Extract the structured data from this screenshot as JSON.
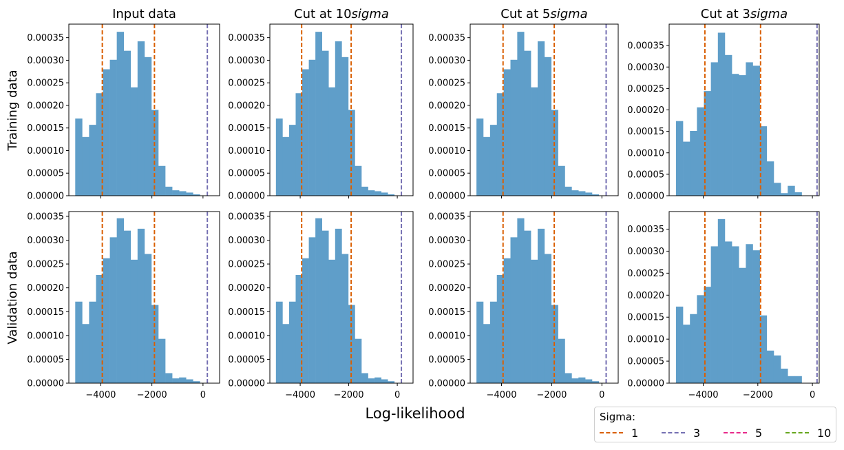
{
  "figure": {
    "xlabel": "Log-likelihood",
    "row_labels": [
      "Training data",
      "Validation data"
    ],
    "column_titles": [
      {
        "text": "Input data",
        "prefix": "Input data",
        "italic": ""
      },
      {
        "text": "Cut at 10sigma",
        "prefix": "Cut at 10",
        "italic": "sigma"
      },
      {
        "text": "Cut at 5sigma",
        "prefix": "Cut at 5",
        "italic": "sigma"
      },
      {
        "text": "Cut at 3sigma",
        "prefix": "Cut at 3",
        "italic": "sigma"
      }
    ],
    "colors": {
      "bars": "#5f9ec9",
      "sigma1": "#d95f02",
      "sigma3": "#7570b3",
      "sigma5": "#e7298a",
      "sigma10": "#66a61e"
    }
  },
  "legend": {
    "title": "Sigma:",
    "items": [
      {
        "label": "1",
        "color": "#d95f02"
      },
      {
        "label": "3",
        "color": "#7570b3"
      },
      {
        "label": "5",
        "color": "#e7298a"
      },
      {
        "label": "10",
        "color": "#66a61e"
      }
    ]
  },
  "chart_data": [
    {
      "type": "bar",
      "title": "Input data",
      "ylabel": "Training data",
      "xlim": [
        -5250,
        650
      ],
      "ylim": [
        0,
        0.00038
      ],
      "xticks": [
        -4000,
        -2000,
        0
      ],
      "xtick_labels": [
        "−4000",
        "−2000",
        "0"
      ],
      "yticks": [
        0,
        5e-05,
        0.0001,
        0.00015,
        0.0002,
        0.00025,
        0.0003,
        0.00035
      ],
      "ytick_labels": [
        "0.00000",
        "0.00005",
        "0.00010",
        "0.00015",
        "0.00020",
        "0.00025",
        "0.00030",
        "0.00035"
      ],
      "bin_start": -5000,
      "bin_width": 271,
      "values": [
        0.000171,
        0.00013,
        0.000157,
        0.000227,
        0.00028,
        0.000301,
        0.000363,
        0.000321,
        0.00024,
        0.000342,
        0.000307,
        0.00019,
        6.6e-05,
        2e-05,
        1.2e-05,
        1e-05,
        7e-06,
        3e-06
      ],
      "vlines": [
        {
          "sigma": "1",
          "x": -3940
        },
        {
          "sigma": "1",
          "x": -1900
        },
        {
          "sigma": "3",
          "x": 170
        }
      ]
    },
    {
      "type": "bar",
      "title": "Cut at 10sigma",
      "ylabel": "",
      "xlim": [
        -5250,
        650
      ],
      "ylim": [
        0,
        0.00038
      ],
      "xticks": [
        -4000,
        -2000,
        0
      ],
      "xtick_labels": [
        "−4000",
        "−2000",
        "0"
      ],
      "yticks": [
        0,
        5e-05,
        0.0001,
        0.00015,
        0.0002,
        0.00025,
        0.0003,
        0.00035
      ],
      "ytick_labels": [
        "0.00000",
        "0.00005",
        "0.00010",
        "0.00015",
        "0.00020",
        "0.00025",
        "0.00030",
        "0.00035"
      ],
      "bin_start": -5000,
      "bin_width": 271,
      "values": [
        0.000171,
        0.00013,
        0.000157,
        0.000227,
        0.00028,
        0.000301,
        0.000363,
        0.000321,
        0.00024,
        0.000342,
        0.000307,
        0.00019,
        6.6e-05,
        2e-05,
        1.2e-05,
        1e-05,
        7e-06,
        3e-06
      ],
      "vlines": [
        {
          "sigma": "1",
          "x": -3940
        },
        {
          "sigma": "1",
          "x": -1900
        },
        {
          "sigma": "3",
          "x": 170
        }
      ]
    },
    {
      "type": "bar",
      "title": "Cut at 5sigma",
      "ylabel": "",
      "xlim": [
        -5250,
        650
      ],
      "ylim": [
        0,
        0.00038
      ],
      "xticks": [
        -4000,
        -2000,
        0
      ],
      "xtick_labels": [
        "−4000",
        "−2000",
        "0"
      ],
      "yticks": [
        0,
        5e-05,
        0.0001,
        0.00015,
        0.0002,
        0.00025,
        0.0003,
        0.00035
      ],
      "ytick_labels": [
        "0.00000",
        "0.00005",
        "0.00010",
        "0.00015",
        "0.00020",
        "0.00025",
        "0.00030",
        "0.00035"
      ],
      "bin_start": -5000,
      "bin_width": 271,
      "values": [
        0.000171,
        0.00013,
        0.000157,
        0.000227,
        0.00028,
        0.000301,
        0.000363,
        0.000321,
        0.00024,
        0.000342,
        0.000307,
        0.00019,
        6.6e-05,
        2e-05,
        1.2e-05,
        1e-05,
        7e-06,
        3e-06
      ],
      "vlines": [
        {
          "sigma": "1",
          "x": -3940
        },
        {
          "sigma": "1",
          "x": -1900
        },
        {
          "sigma": "3",
          "x": 170
        }
      ]
    },
    {
      "type": "bar",
      "title": "Cut at 3sigma",
      "ylabel": "",
      "xlim": [
        -5250,
        250
      ],
      "ylim": [
        0,
        0.0004
      ],
      "xticks": [
        -4000,
        -2000,
        0
      ],
      "xtick_labels": [
        "−4000",
        "−2000",
        "0"
      ],
      "yticks": [
        0,
        5e-05,
        0.0001,
        0.00015,
        0.0002,
        0.00025,
        0.0003,
        0.00035
      ],
      "ytick_labels": [
        "0.00000",
        "0.00005",
        "0.00010",
        "0.00015",
        "0.00020",
        "0.00025",
        "0.00030",
        "0.00035"
      ],
      "bin_start": -5000,
      "bin_width": 256,
      "values": [
        0.000174,
        0.000126,
        0.000151,
        0.000206,
        0.000244,
        0.000311,
        0.00038,
        0.000328,
        0.000284,
        0.000281,
        0.000311,
        0.000303,
        0.000162,
        8e-05,
        3e-05,
        6e-06,
        2.3e-05,
        8e-06
      ],
      "vlines": [
        {
          "sigma": "1",
          "x": -3940
        },
        {
          "sigma": "1",
          "x": -1900
        },
        {
          "sigma": "3",
          "x": 170
        }
      ]
    },
    {
      "type": "bar",
      "title": "",
      "ylabel": "Validation data",
      "xlim": [
        -5250,
        650
      ],
      "ylim": [
        0,
        0.00036
      ],
      "xticks": [
        -4000,
        -2000,
        0
      ],
      "xtick_labels": [
        "−4000",
        "−2000",
        "0"
      ],
      "yticks": [
        0,
        5e-05,
        0.0001,
        0.00015,
        0.0002,
        0.00025,
        0.0003,
        0.00035
      ],
      "ytick_labels": [
        "0.00000",
        "0.00005",
        "0.00010",
        "0.00015",
        "0.00020",
        "0.00025",
        "0.00030",
        "0.00035"
      ],
      "bin_start": -5000,
      "bin_width": 271,
      "values": [
        0.000171,
        0.000124,
        0.000171,
        0.000227,
        0.000262,
        0.000306,
        0.000346,
        0.00032,
        0.000259,
        0.000324,
        0.000271,
        0.000164,
        9.3e-05,
        2.1e-05,
        1e-05,
        1.2e-05,
        8e-06,
        4e-06
      ],
      "vlines": [
        {
          "sigma": "1",
          "x": -3940
        },
        {
          "sigma": "1",
          "x": -1900
        },
        {
          "sigma": "3",
          "x": 170
        }
      ]
    },
    {
      "type": "bar",
      "title": "",
      "ylabel": "",
      "xlim": [
        -5250,
        650
      ],
      "ylim": [
        0,
        0.00036
      ],
      "xticks": [
        -4000,
        -2000,
        0
      ],
      "xtick_labels": [
        "−4000",
        "−2000",
        "0"
      ],
      "yticks": [
        0,
        5e-05,
        0.0001,
        0.00015,
        0.0002,
        0.00025,
        0.0003,
        0.00035
      ],
      "ytick_labels": [
        "0.00000",
        "0.00005",
        "0.00010",
        "0.00015",
        "0.00020",
        "0.00025",
        "0.00030",
        "0.00035"
      ],
      "bin_start": -5000,
      "bin_width": 271,
      "values": [
        0.000171,
        0.000124,
        0.000171,
        0.000227,
        0.000262,
        0.000306,
        0.000346,
        0.00032,
        0.000259,
        0.000324,
        0.000271,
        0.000164,
        9.3e-05,
        2.1e-05,
        1e-05,
        1.2e-05,
        8e-06,
        4e-06
      ],
      "vlines": [
        {
          "sigma": "1",
          "x": -3940
        },
        {
          "sigma": "1",
          "x": -1900
        },
        {
          "sigma": "3",
          "x": 170
        }
      ]
    },
    {
      "type": "bar",
      "title": "",
      "ylabel": "",
      "xlim": [
        -5250,
        650
      ],
      "ylim": [
        0,
        0.00036
      ],
      "xticks": [
        -4000,
        -2000,
        0
      ],
      "xtick_labels": [
        "−4000",
        "−2000",
        "0"
      ],
      "yticks": [
        0,
        5e-05,
        0.0001,
        0.00015,
        0.0002,
        0.00025,
        0.0003,
        0.00035
      ],
      "ytick_labels": [
        "0.00000",
        "0.00005",
        "0.00010",
        "0.00015",
        "0.00020",
        "0.00025",
        "0.00030",
        "0.00035"
      ],
      "bin_start": -5000,
      "bin_width": 271,
      "values": [
        0.000171,
        0.000124,
        0.000171,
        0.000227,
        0.000262,
        0.000306,
        0.000346,
        0.00032,
        0.000259,
        0.000324,
        0.000271,
        0.000164,
        9.3e-05,
        2.1e-05,
        1e-05,
        1.2e-05,
        8e-06,
        4e-06
      ],
      "vlines": [
        {
          "sigma": "1",
          "x": -3940
        },
        {
          "sigma": "1",
          "x": -1900
        },
        {
          "sigma": "3",
          "x": 170
        }
      ]
    },
    {
      "type": "bar",
      "title": "",
      "ylabel": "",
      "xlim": [
        -5250,
        250
      ],
      "ylim": [
        0,
        0.00039
      ],
      "xticks": [
        -4000,
        -2000,
        0
      ],
      "xtick_labels": [
        "−4000",
        "−2000",
        "0"
      ],
      "yticks": [
        0,
        5e-05,
        0.0001,
        0.00015,
        0.0002,
        0.00025,
        0.0003,
        0.00035
      ],
      "ytick_labels": [
        "0.00000",
        "0.00005",
        "0.00010",
        "0.00015",
        "0.00020",
        "0.00025",
        "0.00030",
        "0.00035"
      ],
      "bin_start": -5000,
      "bin_width": 256,
      "values": [
        0.000174,
        0.000133,
        0.000157,
        0.0002,
        0.000219,
        0.000311,
        0.000373,
        0.000322,
        0.000311,
        0.000262,
        0.000316,
        0.000302,
        0.000154,
        7.4e-05,
        6.3e-05,
        3.3e-05,
        1.6e-05,
        1.6e-05
      ],
      "vlines": [
        {
          "sigma": "1",
          "x": -3940
        },
        {
          "sigma": "1",
          "x": -1900
        },
        {
          "sigma": "3",
          "x": 170
        }
      ]
    }
  ]
}
